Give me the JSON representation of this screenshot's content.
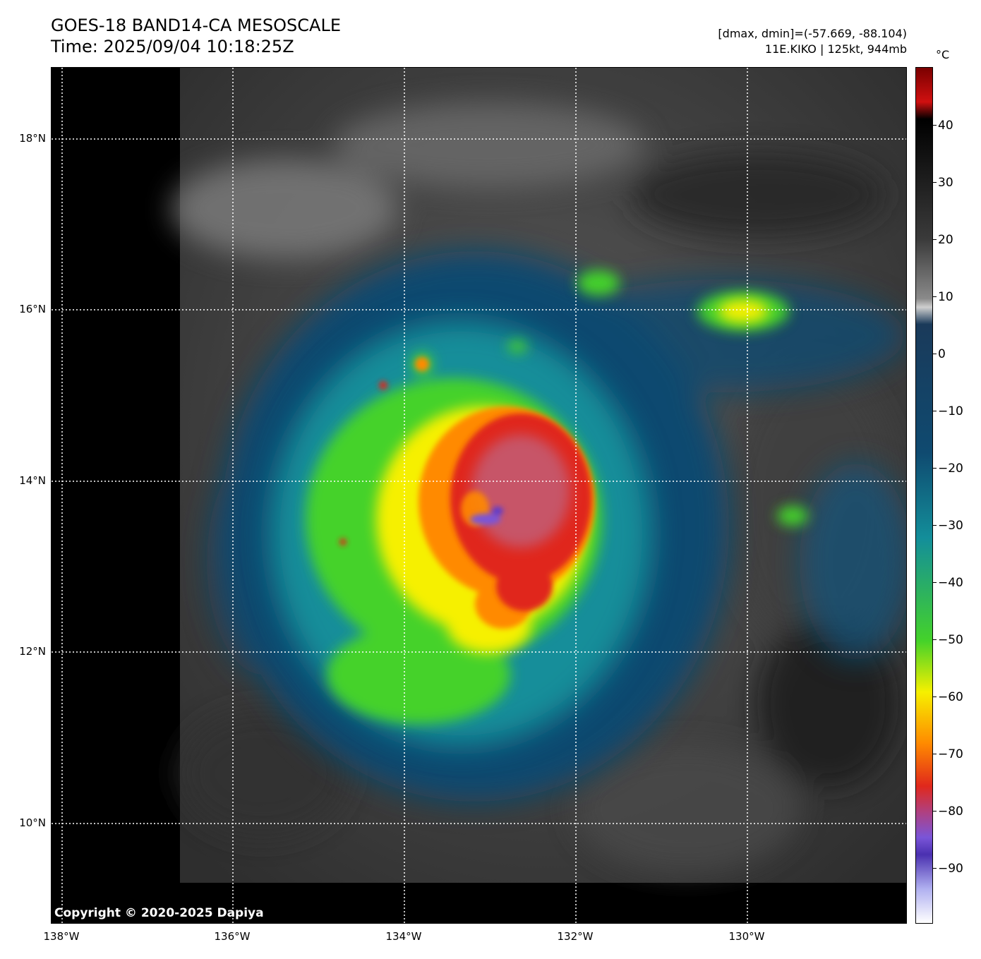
{
  "header": {
    "title": "GOES-18 BAND14-CA MESOSCALE",
    "time": "Time: 2025/09/04 10:18:25Z",
    "range": "[dmax, dmin]=(-57.669, -88.104)",
    "storm": "11E.KIKO | 125kt, 944mb"
  },
  "map": {
    "lat_labels": [
      "18°N",
      "16°N",
      "14°N",
      "12°N",
      "10°N"
    ],
    "lon_labels": [
      "138°W",
      "136°W",
      "134°W",
      "132°W",
      "130°W"
    ],
    "copyright": "Copyright © 2020-2025 Dapiya"
  },
  "colorbar": {
    "unit": "°C",
    "ticks": [
      "40",
      "30",
      "20",
      "10",
      "0",
      "−10",
      "−20",
      "−30",
      "−40",
      "−50",
      "−60",
      "−70",
      "−80",
      "−90"
    ],
    "colors": {
      "low": "#ffffff",
      "purple": "#7a55d8",
      "red": "#e0281c",
      "orange": "#ff8a00",
      "yellow": "#f6f000",
      "green": "#44d22a",
      "teal": "#138e9a",
      "blue": "#0f4a70",
      "gray": "#8a8a8a",
      "black": "#000000",
      "darkred": "#7a0000"
    }
  }
}
